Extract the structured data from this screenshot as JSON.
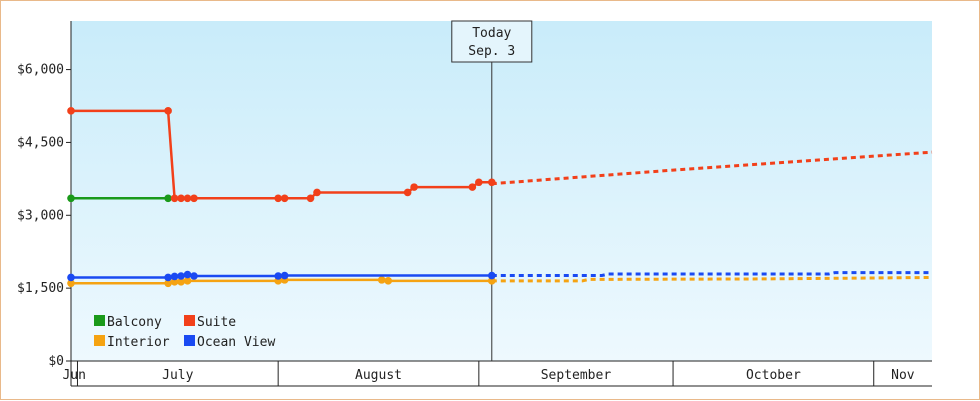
{
  "chart_data": {
    "type": "line",
    "title": "",
    "xlabel": "",
    "ylabel": "",
    "ylim": [
      0,
      7000
    ],
    "yticks": [
      {
        "value": 0,
        "label": "$0"
      },
      {
        "value": 1500,
        "label": "$1,500"
      },
      {
        "value": 3000,
        "label": "$3,000"
      },
      {
        "value": 4500,
        "label": "$4,500"
      },
      {
        "value": 6000,
        "label": "$6,000"
      }
    ],
    "xlim": [
      "2024-06-30",
      "2024-11-10"
    ],
    "months": [
      {
        "label": "Jun",
        "start": "2024-06-30",
        "end": "2024-07-01"
      },
      {
        "label": "July",
        "start": "2024-07-01",
        "end": "2024-08-01"
      },
      {
        "label": "August",
        "start": "2024-08-01",
        "end": "2024-09-01"
      },
      {
        "label": "September",
        "start": "2024-09-01",
        "end": "2024-10-01"
      },
      {
        "label": "October",
        "start": "2024-10-01",
        "end": "2024-11-01"
      },
      {
        "label": "Nov",
        "start": "2024-11-01",
        "end": "2024-11-10"
      }
    ],
    "today": {
      "date": "2024-09-03",
      "label": "Today",
      "sublabel": "Sep. 3"
    },
    "grid": false,
    "legend_position": "bottom-left",
    "series": [
      {
        "name": "Balcony",
        "color": "#1a9a1a",
        "points": [
          [
            "2024-06-30",
            3350
          ],
          [
            "2024-07-15",
            3350
          ]
        ],
        "forecast": []
      },
      {
        "name": "Suite",
        "color": "#f2401a",
        "points": [
          [
            "2024-06-30",
            5150
          ],
          [
            "2024-07-15",
            5150
          ],
          [
            "2024-07-16",
            3350
          ],
          [
            "2024-07-17",
            3350
          ],
          [
            "2024-07-18",
            3350
          ],
          [
            "2024-07-19",
            3350
          ],
          [
            "2024-08-01",
            3350
          ],
          [
            "2024-08-02",
            3350
          ],
          [
            "2024-08-06",
            3350
          ],
          [
            "2024-08-07",
            3470
          ],
          [
            "2024-08-21",
            3470
          ],
          [
            "2024-08-22",
            3580
          ],
          [
            "2024-08-31",
            3580
          ],
          [
            "2024-09-01",
            3680
          ],
          [
            "2024-09-03",
            3680
          ]
        ],
        "forecast": [
          [
            "2024-09-03",
            3650
          ],
          [
            "2024-10-01",
            3930
          ],
          [
            "2024-11-10",
            4300
          ]
        ]
      },
      {
        "name": "Interior",
        "color": "#f5a312",
        "points": [
          [
            "2024-06-30",
            1600
          ],
          [
            "2024-07-15",
            1600
          ],
          [
            "2024-07-16",
            1630
          ],
          [
            "2024-07-17",
            1630
          ],
          [
            "2024-07-18",
            1650
          ],
          [
            "2024-08-01",
            1650
          ],
          [
            "2024-08-02",
            1670
          ],
          [
            "2024-08-17",
            1670
          ],
          [
            "2024-08-18",
            1650
          ],
          [
            "2024-09-03",
            1650
          ]
        ],
        "forecast": [
          [
            "2024-09-03",
            1650
          ],
          [
            "2024-09-17",
            1650
          ],
          [
            "2024-09-18",
            1680
          ],
          [
            "2024-10-15",
            1690
          ],
          [
            "2024-11-10",
            1720
          ]
        ]
      },
      {
        "name": "Ocean View",
        "color": "#1a4af2",
        "points": [
          [
            "2024-06-30",
            1720
          ],
          [
            "2024-07-15",
            1720
          ],
          [
            "2024-07-16",
            1740
          ],
          [
            "2024-07-17",
            1750
          ],
          [
            "2024-07-18",
            1780
          ],
          [
            "2024-07-19",
            1750
          ],
          [
            "2024-08-01",
            1750
          ],
          [
            "2024-08-02",
            1760
          ],
          [
            "2024-09-03",
            1760
          ]
        ],
        "forecast": [
          [
            "2024-09-03",
            1760
          ],
          [
            "2024-09-20",
            1760
          ],
          [
            "2024-09-21",
            1790
          ],
          [
            "2024-10-25",
            1790
          ],
          [
            "2024-10-26",
            1820
          ],
          [
            "2024-11-10",
            1820
          ]
        ]
      }
    ]
  }
}
